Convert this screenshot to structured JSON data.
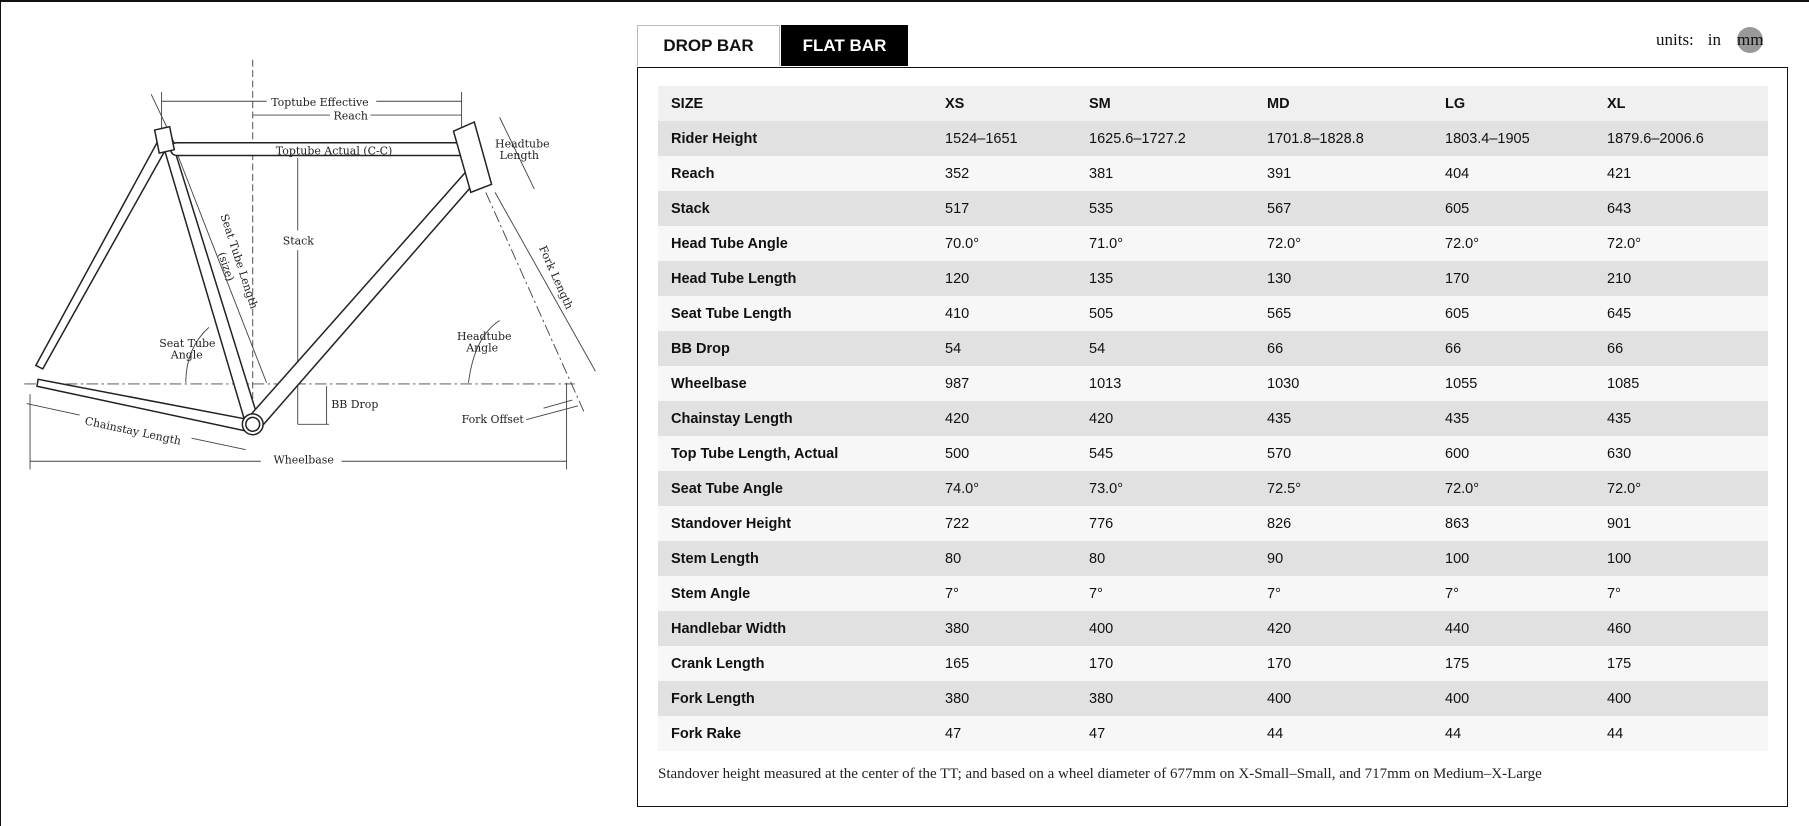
{
  "tabs": [
    {
      "label": "DROP BAR",
      "active": false
    },
    {
      "label": "FLAT BAR",
      "active": true
    }
  ],
  "units": {
    "label": "units:",
    "options": [
      "in",
      "mm"
    ],
    "selected": "mm"
  },
  "diagram": {
    "toptube_effective": "Toptube Effective",
    "reach": "Reach",
    "toptube_actual": "Toptube Actual (C-C)",
    "headtube_length_1": "Headtube",
    "headtube_length_2": "Length",
    "stack": "Stack",
    "seat_tube_length": "Seat Tube Length",
    "seat_tube_size": "(size)",
    "fork_length": "Fork Length",
    "seat_tube_angle_1": "Seat Tube",
    "seat_tube_angle_2": "Angle",
    "headtube_angle_1": "Headtube",
    "headtube_angle_2": "Angle",
    "bb_drop": "BB Drop",
    "fork_offset": "Fork Offset",
    "chainstay_length": "Chainstay Length",
    "wheelbase": "Wheelbase"
  },
  "table": {
    "headers": [
      "SIZE",
      "XS",
      "SM",
      "MD",
      "LG",
      "XL"
    ],
    "rows": [
      [
        "Rider Height",
        "1524–1651",
        "1625.6–1727.2",
        "1701.8–1828.8",
        "1803.4–1905",
        "1879.6–2006.6"
      ],
      [
        "Reach",
        "352",
        "381",
        "391",
        "404",
        "421"
      ],
      [
        "Stack",
        "517",
        "535",
        "567",
        "605",
        "643"
      ],
      [
        "Head Tube Angle",
        "70.0°",
        "71.0°",
        "72.0°",
        "72.0°",
        "72.0°"
      ],
      [
        "Head Tube Length",
        "120",
        "135",
        "130",
        "170",
        "210"
      ],
      [
        "Seat Tube Length",
        "410",
        "505",
        "565",
        "605",
        "645"
      ],
      [
        "BB Drop",
        "54",
        "54",
        "66",
        "66",
        "66"
      ],
      [
        "Wheelbase",
        "987",
        "1013",
        "1030",
        "1055",
        "1085"
      ],
      [
        "Chainstay Length",
        "420",
        "420",
        "435",
        "435",
        "435"
      ],
      [
        "Top Tube Length, Actual",
        "500",
        "545",
        "570",
        "600",
        "630"
      ],
      [
        "Seat Tube Angle",
        "74.0°",
        "73.0°",
        "72.5°",
        "72.0°",
        "72.0°"
      ],
      [
        "Standover Height",
        "722",
        "776",
        "826",
        "863",
        "901"
      ],
      [
        "Stem Length",
        "80",
        "80",
        "90",
        "100",
        "100"
      ],
      [
        "Stem Angle",
        "7°",
        "7°",
        "7°",
        "7°",
        "7°"
      ],
      [
        "Handlebar Width",
        "380",
        "400",
        "420",
        "440",
        "460"
      ],
      [
        "Crank Length",
        "165",
        "170",
        "170",
        "175",
        "175"
      ],
      [
        "Fork Length",
        "380",
        "380",
        "400",
        "400",
        "400"
      ],
      [
        "Fork Rake",
        "47",
        "47",
        "44",
        "44",
        "44"
      ]
    ]
  },
  "footnote": "Standover height measured at the center of the TT; and based on a wheel diameter of 677mm on X-Small–Small, and 717mm on Medium–X-Large"
}
